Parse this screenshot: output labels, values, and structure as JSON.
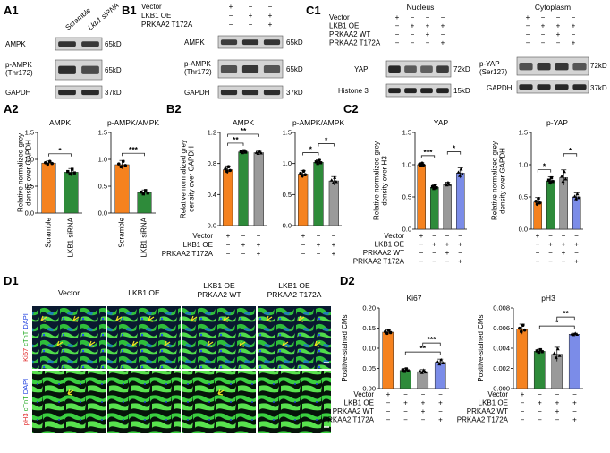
{
  "panels": {
    "A1": "A1",
    "B1": "B1",
    "C1": "C1",
    "A2": "A2",
    "B2": "B2",
    "C2": "C2",
    "D1": "D1",
    "D2": "D2"
  },
  "A1": {
    "col_labels": [
      "Scramble",
      "Lkb1 siRNA"
    ],
    "rows": [
      {
        "label": "AMPK",
        "kd": "65kD"
      },
      {
        "label": "p-AMPK\n(Thr172)",
        "kd": "65kD"
      },
      {
        "label": "GAPDH",
        "kd": "37kD"
      }
    ]
  },
  "B1": {
    "conditions": [
      "Vector",
      "LKB1 OE",
      "PRKAA2 T172A"
    ],
    "signs": [
      [
        "+",
        "−",
        "−"
      ],
      [
        "−",
        "+",
        "+"
      ],
      [
        "−",
        "−",
        "+"
      ]
    ],
    "rows": [
      {
        "label": "AMPK",
        "kd": "65kD"
      },
      {
        "label": "p-AMPK\n(Thr172)",
        "kd": "65kD"
      },
      {
        "label": "GAPDH",
        "kd": "37kD"
      }
    ]
  },
  "C1": {
    "header_nucleus": "Nucleus",
    "header_cytoplasm": "Cytoplasm",
    "conditions": [
      "Vector",
      "LKB1 OE",
      "PRKAA2 WT",
      "PRKAA2 T172A"
    ],
    "signs": [
      [
        "+",
        "−",
        "−",
        "−"
      ],
      [
        "−",
        "+",
        "+",
        "+"
      ],
      [
        "−",
        "−",
        "+",
        "−"
      ],
      [
        "−",
        "−",
        "−",
        "+"
      ]
    ],
    "nuc_rows": [
      {
        "label": "YAP",
        "kd": "72kD"
      },
      {
        "label": "Histone 3",
        "kd": "15kD"
      }
    ],
    "cyt_rows": [
      {
        "label": "p-YAP\n(Ser127)",
        "kd": "72kD"
      },
      {
        "label": "GAPDH",
        "kd": "37kD"
      }
    ]
  },
  "chart_data": [
    {
      "id": "A2-AMPK",
      "type": "bar",
      "title": "AMPK",
      "ylabel": "Relative normalized grey\ndensity over GAPDH",
      "categories": [
        "Scramble",
        "LKB1 siRNA"
      ],
      "values": [
        0.93,
        0.76
      ],
      "errors": [
        0.04,
        0.07
      ],
      "ylim": [
        0,
        1.5
      ],
      "yticks": [
        "0.0",
        "0.5",
        "1.0",
        "1.5"
      ],
      "colors": [
        "#f5821f",
        "#2e8b3a"
      ],
      "sig": [
        {
          "from": 0,
          "to": 1,
          "label": "*"
        }
      ]
    },
    {
      "id": "A2-pAMPK",
      "type": "bar",
      "title": "p-AMPK/AMPK",
      "ylabel": "",
      "categories": [
        "Scramble",
        "LKB1 siRNA"
      ],
      "values": [
        0.9,
        0.38
      ],
      "errors": [
        0.08,
        0.05
      ],
      "ylim": [
        0,
        1.5
      ],
      "yticks": [
        "0.0",
        "0.5",
        "1.0",
        "1.5"
      ],
      "colors": [
        "#f5821f",
        "#2e8b3a"
      ],
      "sig": [
        {
          "from": 0,
          "to": 1,
          "label": "***"
        }
      ]
    },
    {
      "id": "B2-AMPK",
      "type": "bar",
      "title": "AMPK",
      "ylabel": "Relative normalized grey\ndensity over GAPDH",
      "categories": [
        "",
        "",
        ""
      ],
      "values": [
        0.72,
        0.95,
        0.94
      ],
      "errors": [
        0.05,
        0.02,
        0.02
      ],
      "ylim": [
        0,
        1.2
      ],
      "yticks": [
        "0.0",
        "0.4",
        "0.8",
        "1.2"
      ],
      "colors": [
        "#f5821f",
        "#2e8b3a",
        "#9a9a9a"
      ],
      "sig": [
        {
          "from": 0,
          "to": 1,
          "label": "**"
        },
        {
          "from": 0,
          "to": 2,
          "label": "**"
        }
      ]
    },
    {
      "id": "B2-pAMPK",
      "type": "bar",
      "title": "p-AMPK/AMPK",
      "ylabel": "",
      "categories": [
        "",
        "",
        ""
      ],
      "values": [
        0.83,
        1.02,
        0.72
      ],
      "errors": [
        0.06,
        0.04,
        0.07
      ],
      "ylim": [
        0,
        1.5
      ],
      "yticks": [
        "0.0",
        "0.5",
        "1.0",
        "1.5"
      ],
      "colors": [
        "#f5821f",
        "#2e8b3a",
        "#9a9a9a"
      ],
      "sig": [
        {
          "from": 0,
          "to": 1,
          "label": "*"
        },
        {
          "from": 1,
          "to": 2,
          "label": "*"
        }
      ]
    },
    {
      "id": "C2-YAP",
      "type": "bar",
      "title": "YAP",
      "ylabel": "Relative normalized grey\ndensity over H3",
      "categories": [
        "",
        "",
        "",
        ""
      ],
      "values": [
        1.0,
        0.65,
        0.7,
        0.87
      ],
      "errors": [
        0.03,
        0.04,
        0.03,
        0.08
      ],
      "ylim": [
        0,
        1.5
      ],
      "yticks": [
        "0.0",
        "0.5",
        "1.0",
        "1.5"
      ],
      "colors": [
        "#f5821f",
        "#2e8b3a",
        "#9a9a9a",
        "#7b8ce8"
      ],
      "sig": [
        {
          "from": 0,
          "to": 1,
          "label": "***"
        },
        {
          "from": 2,
          "to": 3,
          "label": "*"
        }
      ]
    },
    {
      "id": "C2-pYAP",
      "type": "bar",
      "title": "p-YAP",
      "ylabel": "Relative normalized grey\ndensity over GAPDH",
      "categories": [
        "",
        "",
        "",
        ""
      ],
      "values": [
        0.42,
        0.75,
        0.8,
        0.5
      ],
      "errors": [
        0.07,
        0.06,
        0.12,
        0.06
      ],
      "ylim": [
        0,
        1.5
      ],
      "yticks": [
        "0.0",
        "0.5",
        "1.0",
        "1.5"
      ],
      "colors": [
        "#f5821f",
        "#2e8b3a",
        "#9a9a9a",
        "#7b8ce8"
      ],
      "sig": [
        {
          "from": 0,
          "to": 1,
          "label": "*"
        },
        {
          "from": 2,
          "to": 3,
          "label": "*"
        }
      ]
    },
    {
      "id": "D2-Ki67",
      "type": "bar",
      "title": "Ki67",
      "ylabel": "Positive-stained CMs",
      "categories": [
        "",
        "",
        "",
        ""
      ],
      "values": [
        0.14,
        0.045,
        0.042,
        0.065
      ],
      "errors": [
        0.006,
        0.005,
        0.005,
        0.008
      ],
      "ylim": [
        0,
        0.2
      ],
      "yticks": [
        "0.00",
        "0.05",
        "0.10",
        "0.15",
        "0.20"
      ],
      "colors": [
        "#f5821f",
        "#2e8b3a",
        "#9a9a9a",
        "#7b8ce8"
      ],
      "sig": [
        {
          "from": 1,
          "to": 3,
          "label": "**"
        },
        {
          "from": 2,
          "to": 3,
          "label": "***"
        }
      ]
    },
    {
      "id": "D2-pH3",
      "type": "bar",
      "title": "pH3",
      "ylabel": "Positive-stained CMs",
      "categories": [
        "",
        "",
        "",
        ""
      ],
      "values": [
        0.0059,
        0.0037,
        0.0034,
        0.0054
      ],
      "errors": [
        0.0005,
        0.0002,
        0.0007,
        0.0001
      ],
      "ylim": [
        0,
        0.008
      ],
      "yticks": [
        "0.000",
        "0.002",
        "0.004",
        "0.006",
        "0.008"
      ],
      "colors": [
        "#f5821f",
        "#2e8b3a",
        "#9a9a9a",
        "#7b8ce8"
      ],
      "sig": [
        {
          "from": 1,
          "to": 3,
          "label": "*"
        },
        {
          "from": 2,
          "to": 3,
          "label": "**"
        }
      ]
    }
  ],
  "B2_conditions": [
    "Vector",
    "LKB1 OE",
    "PRKAA2 T172A"
  ],
  "B2_signs": [
    [
      "+",
      "−",
      "−"
    ],
    [
      "−",
      "+",
      "+"
    ],
    [
      "−",
      "−",
      "+"
    ]
  ],
  "C2_conditions": [
    "Vector",
    "LKB1 OE",
    "PRKAA2 WT",
    "PRKAA2 T172A"
  ],
  "C2_signs": [
    [
      "+",
      "−",
      "−",
      "−"
    ],
    [
      "−",
      "+",
      "+",
      "+"
    ],
    [
      "−",
      "−",
      "+",
      "−"
    ],
    [
      "−",
      "−",
      "−",
      "+"
    ]
  ],
  "D1": {
    "columns": [
      "Vector",
      "LKB1 OE",
      "LKB1 OE\nPRKAA2 WT",
      "LKB1 OE\nPRKAA2 T172A"
    ],
    "row1_stain": [
      "Ki67",
      "cTnT",
      "DAPI"
    ],
    "row2_stain": [
      "pH3",
      "cTnT",
      "DAPI"
    ]
  },
  "D2_conditions": [
    "Vector",
    "LKB1 OE",
    "PRKAA2 WT",
    "PRKAA2 T172A"
  ],
  "D2_signs": [
    [
      "+",
      "−",
      "−",
      "−"
    ],
    [
      "−",
      "+",
      "+",
      "+"
    ],
    [
      "−",
      "−",
      "+",
      "−"
    ],
    [
      "−",
      "−",
      "−",
      "+"
    ]
  ]
}
